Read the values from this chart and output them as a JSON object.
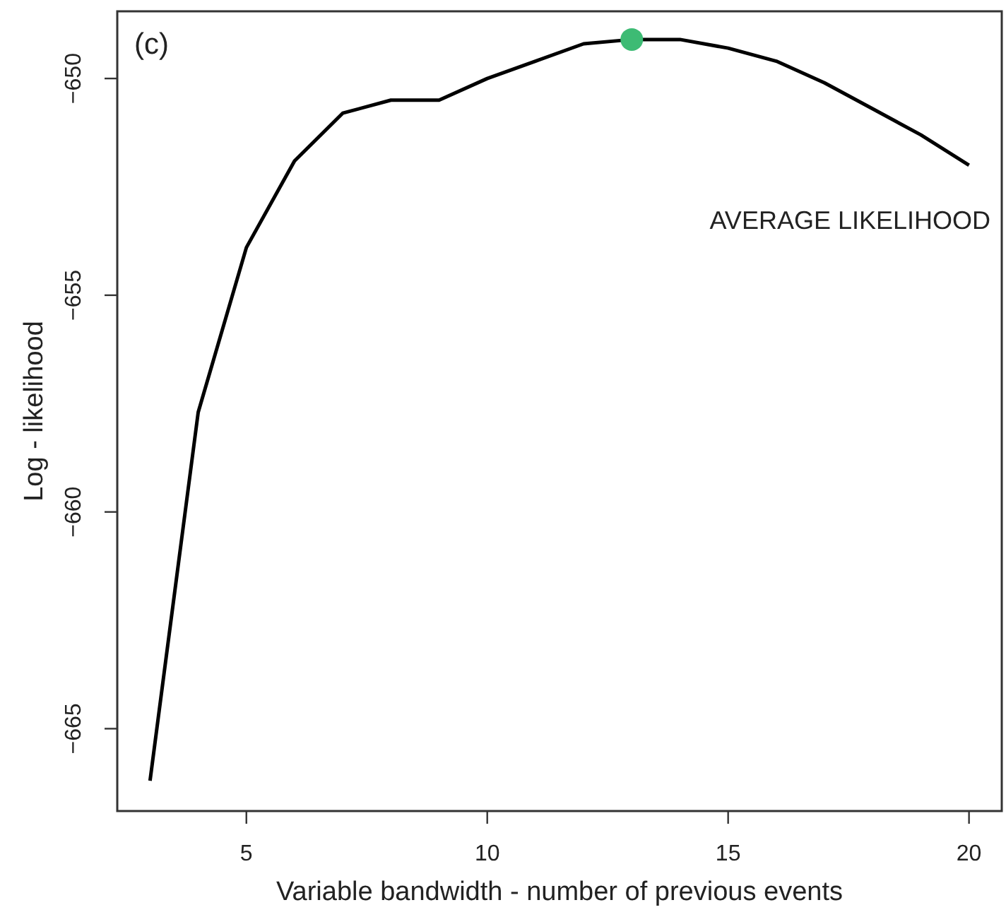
{
  "chart_data": {
    "type": "line",
    "xlabel": "Variable bandwidth - number of previous events",
    "ylabel": "Log - likelihood",
    "annotations": [
      "(c)",
      "AVERAGE LIKELIHOOD"
    ],
    "xlim": [
      2.32,
      20.68
    ],
    "xticks": [
      5,
      10,
      15,
      20
    ],
    "ylim": [
      -666.9,
      -648.45
    ],
    "yticks": [
      -650,
      -655,
      -660,
      -665
    ],
    "grid": false,
    "series": [
      {
        "color": "#000000",
        "x": [
          3,
          4,
          5,
          6,
          7,
          8,
          9,
          10,
          11,
          12,
          13,
          14,
          15,
          16,
          17,
          18,
          19,
          20
        ],
        "values": [
          -666.2,
          -657.7,
          -653.9,
          -651.9,
          -650.8,
          -650.5,
          -650.5,
          -650.0,
          -649.6,
          -649.2,
          -649.1,
          -649.1,
          -649.3,
          -649.6,
          -650.1,
          -650.7,
          -651.3,
          -652.0
        ]
      },
      {
        "type": "scatter",
        "color": "#3dbb74",
        "marker": "circle",
        "x": [
          13
        ],
        "values": [
          -649.1
        ]
      }
    ]
  }
}
